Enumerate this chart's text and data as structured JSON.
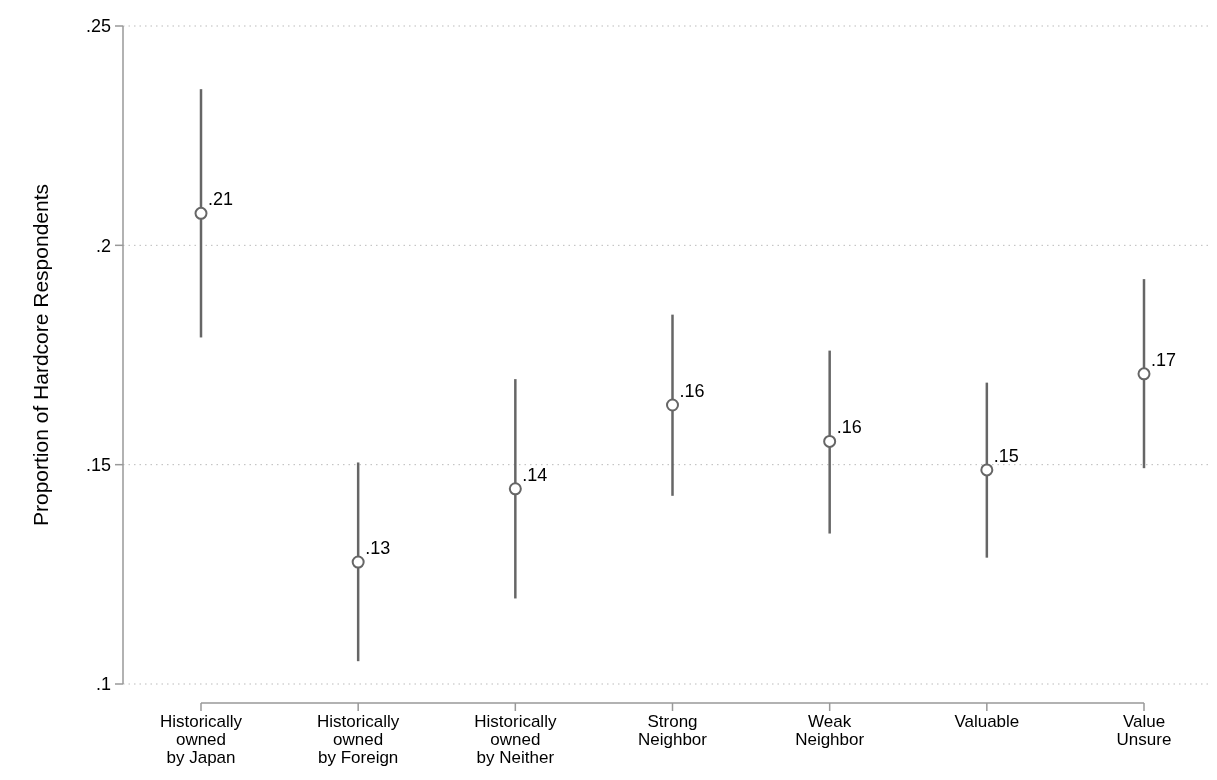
{
  "chart_data": {
    "type": "scatter",
    "ylabel": "Proportion of Hardcore Respondents",
    "categories": [
      "Historically\nowned\nby Japan",
      "Historically\nowned\nby Foreign",
      "Historically\nowned\nby Neither",
      "Strong\nNeighbor",
      "Weak\nNeighbor",
      "Valuable",
      "Value\nUnsure"
    ],
    "series": [
      {
        "color": "#666666",
        "values": [
          0.2073,
          0.1278,
          0.1445,
          0.1636,
          0.1553,
          0.1488,
          0.1707
        ],
        "errors": [
          [
            0.179,
            0.2356
          ],
          [
            0.1052,
            0.1505
          ],
          [
            0.1195,
            0.1695
          ],
          [
            0.1429,
            0.1842
          ],
          [
            0.1343,
            0.176
          ],
          [
            0.1288,
            0.1687
          ],
          [
            0.1492,
            0.1923
          ]
        ],
        "value_labels": [
          ".21",
          ".13",
          ".14",
          ".16",
          ".16",
          ".15",
          ".17"
        ]
      }
    ],
    "ylim": [
      0.1,
      0.25
    ],
    "yticks": [
      {
        "value": 0.1,
        "label": ".1"
      },
      {
        "value": 0.15,
        "label": ".15"
      },
      {
        "value": 0.2,
        "label": ".2"
      },
      {
        "value": 0.25,
        "label": ".25"
      }
    ],
    "grid": "y",
    "marker": "circle"
  }
}
